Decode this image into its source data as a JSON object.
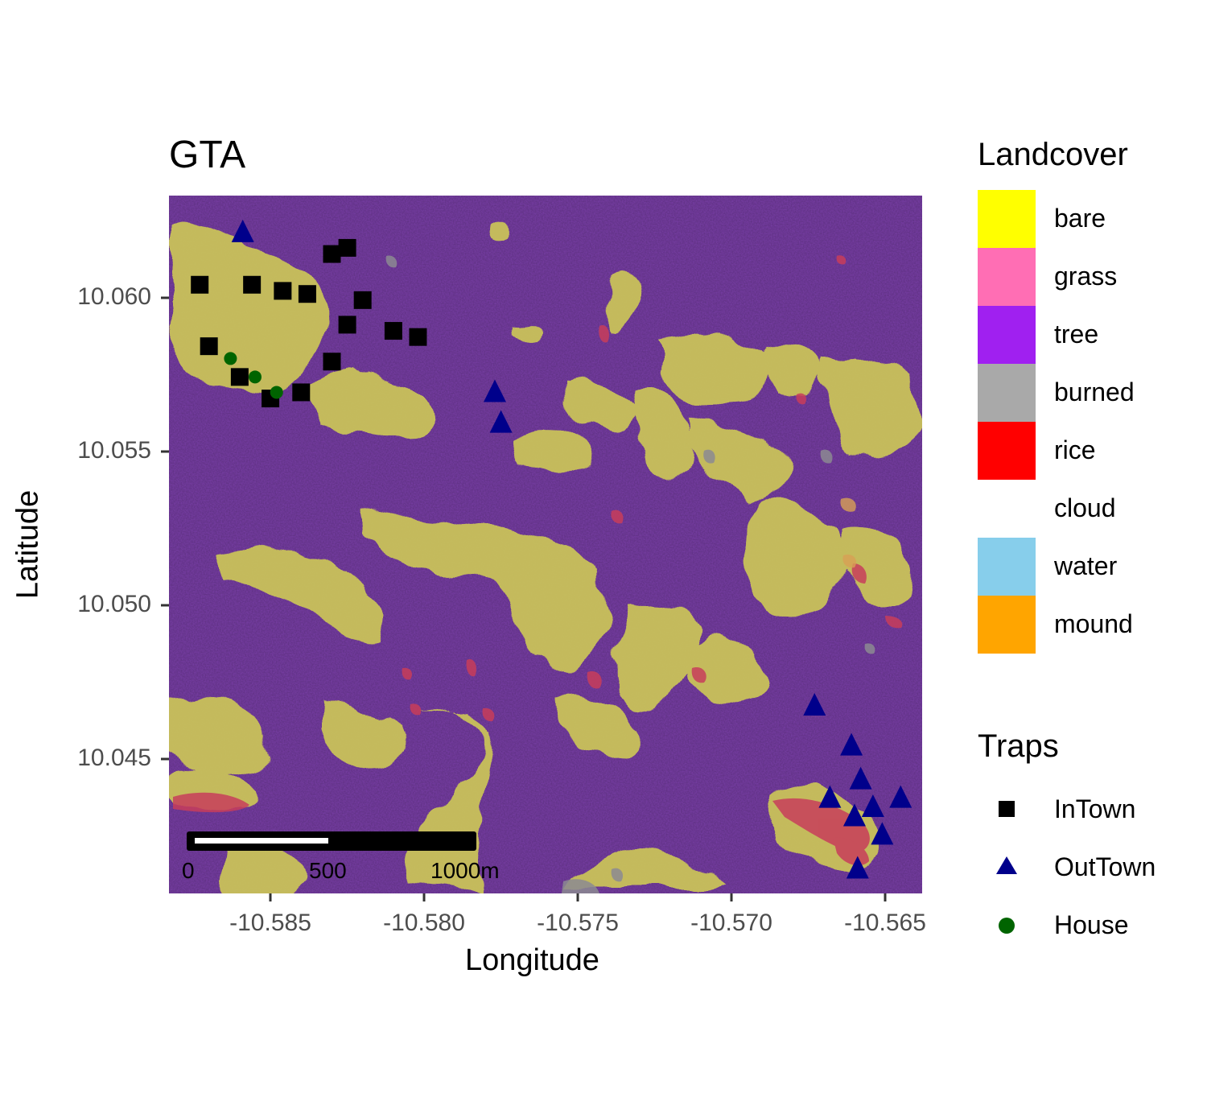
{
  "title": "GTA",
  "x_axis": {
    "title": "Longitude",
    "ticks": [
      "-10.585",
      "-10.580",
      "-10.575",
      "-10.570",
      "-10.565"
    ]
  },
  "y_axis": {
    "title": "Latitude",
    "ticks": [
      "10.060",
      "10.055",
      "10.050",
      "10.045"
    ]
  },
  "legend_landcover": {
    "title": "Landcover",
    "items": [
      {
        "label": "bare",
        "color": "#FFFF00"
      },
      {
        "label": "grass",
        "color": "#FF6EB4"
      },
      {
        "label": "tree",
        "color": "#A020F0"
      },
      {
        "label": "burned",
        "color": "#A9A9A9"
      },
      {
        "label": "rice",
        "color": "#FF0000"
      },
      {
        "label": "cloud",
        "color": "#FFFFFF"
      },
      {
        "label": "water",
        "color": "#87CEEB"
      },
      {
        "label": "mound",
        "color": "#FFA500"
      }
    ]
  },
  "legend_traps": {
    "title": "Traps",
    "items": [
      {
        "label": "InTown",
        "shape": "square",
        "color": "#000000"
      },
      {
        "label": "OutTown",
        "shape": "triangle",
        "color": "#00008B"
      },
      {
        "label": "House",
        "shape": "circle",
        "color": "#006400"
      }
    ]
  },
  "scale_bar": {
    "labels": [
      "0",
      "500",
      "1000m"
    ]
  },
  "chart_data": {
    "type": "scatter",
    "title": "GTA",
    "xlabel": "Longitude",
    "ylabel": "Latitude",
    "xlim": [
      -10.5883,
      -10.5638
    ],
    "ylim": [
      10.0407,
      10.0634
    ],
    "series": [
      {
        "name": "InTown",
        "points": [
          [
            -10.5873,
            10.0605
          ],
          [
            -10.5856,
            10.0605
          ],
          [
            -10.5846,
            10.0603
          ],
          [
            -10.5838,
            10.0602
          ],
          [
            -10.583,
            10.0615
          ],
          [
            -10.5825,
            10.0617
          ],
          [
            -10.582,
            10.06
          ],
          [
            -10.581,
            10.059
          ],
          [
            -10.5802,
            10.0588
          ],
          [
            -10.587,
            10.0585
          ],
          [
            -10.586,
            10.0575
          ],
          [
            -10.585,
            10.0568
          ],
          [
            -10.584,
            10.057
          ],
          [
            -10.583,
            10.058
          ],
          [
            -10.5825,
            10.0592
          ]
        ]
      },
      {
        "name": "OutTown",
        "points": [
          [
            -10.5859,
            10.0622
          ],
          [
            -10.5777,
            10.057
          ],
          [
            -10.5775,
            10.056
          ],
          [
            -10.5673,
            10.0468
          ],
          [
            -10.5661,
            10.0455
          ],
          [
            -10.5658,
            10.0444
          ],
          [
            -10.5668,
            10.0438
          ],
          [
            -10.566,
            10.0432
          ],
          [
            -10.5654,
            10.0435
          ],
          [
            -10.5645,
            10.0438
          ],
          [
            -10.5651,
            10.0426
          ],
          [
            -10.5659,
            10.0415
          ]
        ]
      },
      {
        "name": "House",
        "points": [
          [
            -10.5863,
            10.0581
          ],
          [
            -10.5855,
            10.0575
          ],
          [
            -10.5848,
            10.057
          ]
        ]
      }
    ]
  }
}
